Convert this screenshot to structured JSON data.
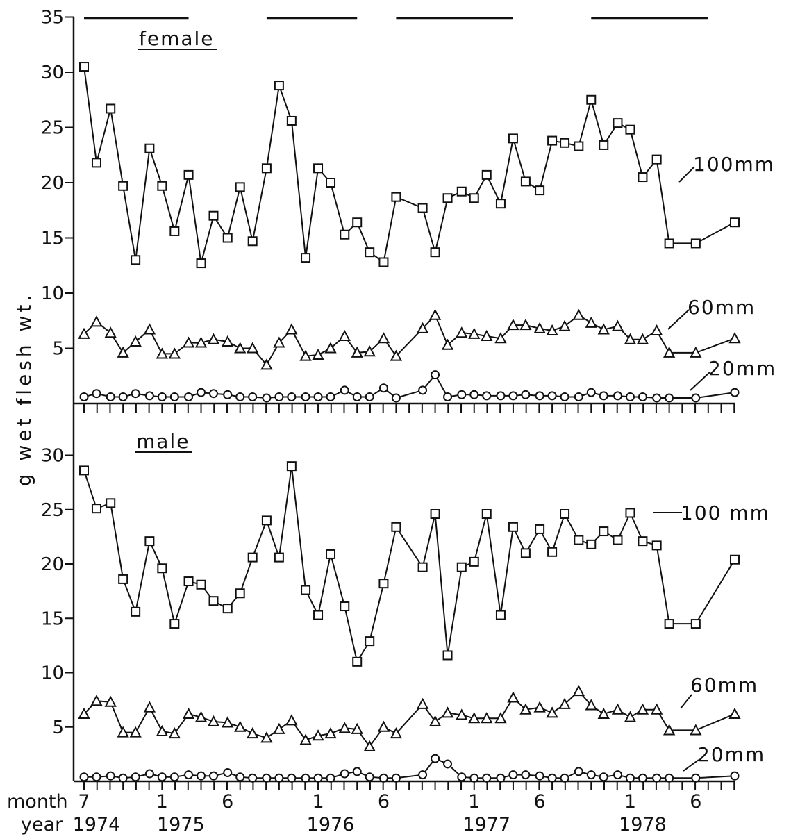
{
  "chart_data": [
    {
      "type": "line",
      "title": "female",
      "ylabel": "g wet flesh wt.",
      "ylim": [
        0,
        35
      ],
      "yticks": [
        5,
        10,
        15,
        20,
        25,
        30,
        35
      ],
      "ytick_labels": [
        "5",
        "10",
        "15",
        "20",
        "25",
        "30",
        "35"
      ],
      "bar_periods": [
        [
          1974.5,
          1975.17
        ],
        [
          1975.67,
          1976.25
        ],
        [
          1976.5,
          1977.25
        ],
        [
          1977.75,
          1978.5
        ]
      ],
      "series": [
        {
          "name": "100mm",
          "marker": "square",
          "x": [
            1974.5,
            1974.58,
            1974.67,
            1974.75,
            1974.83,
            1974.92,
            1975.0,
            1975.08,
            1975.17,
            1975.25,
            1975.33,
            1975.42,
            1975.5,
            1975.58,
            1975.67,
            1975.75,
            1975.83,
            1975.92,
            1976.0,
            1976.08,
            1976.17,
            1976.25,
            1976.33,
            1976.42,
            1976.5,
            1976.67,
            1976.75,
            1976.83,
            1976.92,
            1977.0,
            1977.08,
            1977.17,
            1977.25,
            1977.33,
            1977.42,
            1977.5,
            1977.58,
            1977.67,
            1977.75,
            1977.83,
            1977.92,
            1978.0,
            1978.08,
            1978.17,
            1978.25,
            1978.42,
            1978.67
          ],
          "y": [
            30.5,
            21.8,
            26.7,
            19.7,
            13.0,
            23.1,
            19.7,
            15.6,
            20.7,
            12.7,
            17.0,
            15.0,
            19.6,
            14.7,
            21.3,
            28.8,
            25.6,
            13.2,
            21.3,
            20.0,
            15.3,
            16.4,
            13.7,
            12.8,
            18.7,
            17.7,
            13.7,
            18.6,
            19.2,
            18.6,
            20.7,
            18.1,
            24.0,
            20.1,
            19.3,
            23.8,
            23.6,
            23.3,
            27.5,
            23.4,
            25.4,
            24.8,
            20.5,
            22.1,
            14.5,
            14.5,
            16.4
          ]
        },
        {
          "name": "60mm",
          "marker": "triangle",
          "x": [
            1974.5,
            1974.58,
            1974.67,
            1974.75,
            1974.83,
            1974.92,
            1975.0,
            1975.08,
            1975.17,
            1975.25,
            1975.33,
            1975.42,
            1975.5,
            1975.58,
            1975.67,
            1975.75,
            1975.83,
            1975.92,
            1976.0,
            1976.08,
            1976.17,
            1976.25,
            1976.33,
            1976.42,
            1976.5,
            1976.67,
            1976.75,
            1976.83,
            1976.92,
            1977.0,
            1977.08,
            1977.17,
            1977.25,
            1977.33,
            1977.42,
            1977.5,
            1977.58,
            1977.67,
            1977.75,
            1977.83,
            1977.92,
            1978.0,
            1978.08,
            1978.17,
            1978.25,
            1978.42,
            1978.67
          ],
          "y": [
            6.3,
            7.4,
            6.4,
            4.6,
            5.6,
            6.7,
            4.5,
            4.5,
            5.5,
            5.5,
            5.8,
            5.6,
            5.0,
            5.0,
            3.5,
            5.5,
            6.7,
            4.3,
            4.4,
            5.0,
            6.1,
            4.6,
            4.7,
            5.9,
            4.3,
            6.8,
            8.0,
            5.3,
            6.4,
            6.3,
            6.1,
            5.9,
            7.1,
            7.1,
            6.8,
            6.6,
            7.0,
            8.0,
            7.3,
            6.7,
            7.0,
            5.8,
            5.8,
            6.6,
            4.6,
            4.6,
            5.9
          ]
        },
        {
          "name": "20mm",
          "marker": "circle",
          "x": [
            1974.5,
            1974.58,
            1974.67,
            1974.75,
            1974.83,
            1974.92,
            1975.0,
            1975.08,
            1975.17,
            1975.25,
            1975.33,
            1975.42,
            1975.5,
            1975.58,
            1975.67,
            1975.75,
            1975.83,
            1975.92,
            1976.0,
            1976.08,
            1976.17,
            1976.25,
            1976.33,
            1976.42,
            1976.5,
            1976.67,
            1976.75,
            1976.83,
            1976.92,
            1977.0,
            1977.08,
            1977.17,
            1977.25,
            1977.33,
            1977.42,
            1977.5,
            1977.58,
            1977.67,
            1977.75,
            1977.83,
            1977.92,
            1978.0,
            1978.08,
            1978.17,
            1978.25,
            1978.42,
            1978.67
          ],
          "y": [
            0.6,
            0.9,
            0.6,
            0.6,
            0.9,
            0.7,
            0.6,
            0.6,
            0.6,
            1.0,
            0.9,
            0.8,
            0.6,
            0.6,
            0.5,
            0.6,
            0.6,
            0.6,
            0.6,
            0.6,
            1.2,
            0.6,
            0.6,
            1.4,
            0.5,
            1.2,
            2.6,
            0.6,
            0.8,
            0.8,
            0.7,
            0.7,
            0.7,
            0.8,
            0.7,
            0.7,
            0.6,
            0.6,
            1.0,
            0.7,
            0.7,
            0.6,
            0.6,
            0.5,
            0.5,
            0.5,
            1.0
          ]
        }
      ]
    },
    {
      "type": "line",
      "title": "male",
      "ylabel": "g wet flesh wt.",
      "ylim": [
        0,
        35
      ],
      "yticks": [
        5,
        10,
        15,
        20,
        25,
        30
      ],
      "ytick_labels": [
        "5",
        "10",
        "15",
        "20",
        "25",
        "30"
      ],
      "series": [
        {
          "name": "100 mm",
          "marker": "square",
          "x": [
            1974.5,
            1974.58,
            1974.67,
            1974.75,
            1974.83,
            1974.92,
            1975.0,
            1975.08,
            1975.17,
            1975.25,
            1975.33,
            1975.42,
            1975.5,
            1975.58,
            1975.67,
            1975.75,
            1975.83,
            1975.92,
            1976.0,
            1976.08,
            1976.17,
            1976.25,
            1976.33,
            1976.42,
            1976.5,
            1976.67,
            1976.75,
            1976.83,
            1976.92,
            1977.0,
            1977.08,
            1977.17,
            1977.25,
            1977.33,
            1977.42,
            1977.5,
            1977.58,
            1977.67,
            1977.75,
            1977.83,
            1977.92,
            1978.0,
            1978.08,
            1978.17,
            1978.25,
            1978.42,
            1978.67
          ],
          "y": [
            28.6,
            25.1,
            25.6,
            18.6,
            15.6,
            22.1,
            19.6,
            14.5,
            18.4,
            18.1,
            16.6,
            15.9,
            17.3,
            20.6,
            24.0,
            20.6,
            29.0,
            17.6,
            15.3,
            20.9,
            16.1,
            11.0,
            12.9,
            18.2,
            23.4,
            19.7,
            24.6,
            11.6,
            19.7,
            20.2,
            24.6,
            15.3,
            23.4,
            21.0,
            23.2,
            21.1,
            24.6,
            22.2,
            21.8,
            23.0,
            22.2,
            24.7,
            22.1,
            21.7,
            14.5,
            14.5,
            20.4
          ]
        },
        {
          "name": "60mm",
          "marker": "triangle",
          "x": [
            1974.5,
            1974.58,
            1974.67,
            1974.75,
            1974.83,
            1974.92,
            1975.0,
            1975.08,
            1975.17,
            1975.25,
            1975.33,
            1975.42,
            1975.5,
            1975.58,
            1975.67,
            1975.75,
            1975.83,
            1975.92,
            1976.0,
            1976.08,
            1976.17,
            1976.25,
            1976.33,
            1976.42,
            1976.5,
            1976.67,
            1976.75,
            1976.83,
            1976.92,
            1977.0,
            1977.08,
            1977.17,
            1977.25,
            1977.33,
            1977.42,
            1977.5,
            1977.58,
            1977.67,
            1977.75,
            1977.83,
            1977.92,
            1978.0,
            1978.08,
            1978.17,
            1978.25,
            1978.42,
            1978.67
          ],
          "y": [
            6.2,
            7.4,
            7.3,
            4.5,
            4.5,
            6.8,
            4.6,
            4.4,
            6.2,
            5.9,
            5.5,
            5.4,
            5.0,
            4.4,
            4.0,
            4.8,
            5.6,
            3.8,
            4.2,
            4.4,
            4.9,
            4.8,
            3.2,
            5.0,
            4.4,
            7.1,
            5.5,
            6.3,
            6.1,
            5.8,
            5.8,
            5.8,
            7.7,
            6.6,
            6.8,
            6.3,
            7.1,
            8.3,
            7.0,
            6.2,
            6.6,
            5.9,
            6.6,
            6.6,
            4.7,
            4.7,
            6.2
          ]
        },
        {
          "name": "20mm",
          "marker": "circle",
          "x": [
            1974.5,
            1974.58,
            1974.67,
            1974.75,
            1974.83,
            1974.92,
            1975.0,
            1975.08,
            1975.17,
            1975.25,
            1975.33,
            1975.42,
            1975.5,
            1975.58,
            1975.67,
            1975.75,
            1975.83,
            1975.92,
            1976.0,
            1976.08,
            1976.17,
            1976.25,
            1976.33,
            1976.42,
            1976.5,
            1976.67,
            1976.75,
            1976.83,
            1976.92,
            1977.0,
            1977.08,
            1977.17,
            1977.25,
            1977.33,
            1977.42,
            1977.5,
            1977.58,
            1977.67,
            1977.75,
            1977.83,
            1977.92,
            1978.0,
            1978.08,
            1978.17,
            1978.25,
            1978.42,
            1978.67
          ],
          "y": [
            0.4,
            0.4,
            0.5,
            0.3,
            0.4,
            0.7,
            0.4,
            0.4,
            0.6,
            0.5,
            0.5,
            0.8,
            0.4,
            0.3,
            0.3,
            0.3,
            0.3,
            0.3,
            0.3,
            0.3,
            0.7,
            0.9,
            0.4,
            0.3,
            0.3,
            0.6,
            2.1,
            1.6,
            0.4,
            0.3,
            0.3,
            0.3,
            0.6,
            0.6,
            0.5,
            0.3,
            0.3,
            0.9,
            0.6,
            0.4,
            0.6,
            0.3,
            0.3,
            0.3,
            0.3,
            0.3,
            0.5
          ]
        }
      ]
    }
  ],
  "xaxis": {
    "row_labels": {
      "month": "month",
      "year": "year"
    },
    "month_labels": [
      "7",
      "1",
      "6",
      "1",
      "6",
      "1",
      "6",
      "1",
      "6"
    ],
    "year_labels": [
      "1974",
      "1975",
      "1976",
      "1977",
      "1978"
    ]
  }
}
